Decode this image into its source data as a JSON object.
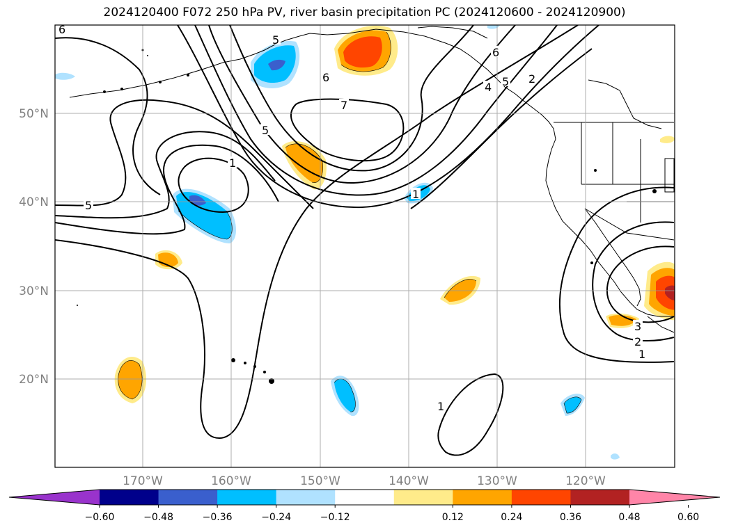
{
  "title": "2024120400 F072 250 hPa PV, river basin precipitation PC (2024120600 - 2024120900)",
  "lat_labels": [
    "50°N",
    "40°N",
    "30°N",
    "20°N"
  ],
  "lon_labels": [
    "170°W",
    "160°W",
    "150°W",
    "140°W",
    "130°W",
    "120°W"
  ],
  "contour_labels": [
    "6",
    "5",
    "6",
    "7",
    "5",
    "1",
    "1",
    "2",
    "4",
    "5",
    "6",
    "5",
    "1",
    "3",
    "2",
    "1"
  ],
  "colorbar": {
    "ticks": [
      "−0.60",
      "−0.48",
      "−0.36",
      "−0.24",
      "−0.12",
      "0.12",
      "0.24",
      "0.36",
      "0.48",
      "0.60"
    ],
    "colors": [
      "#9933cc",
      "#00008b",
      "#3a5fcd",
      "#00bfff",
      "#b0e2ff",
      "#ffffff",
      "#ffeb8a",
      "#ffa500",
      "#ff4500",
      "#b22222",
      "#ff85a8"
    ]
  }
}
